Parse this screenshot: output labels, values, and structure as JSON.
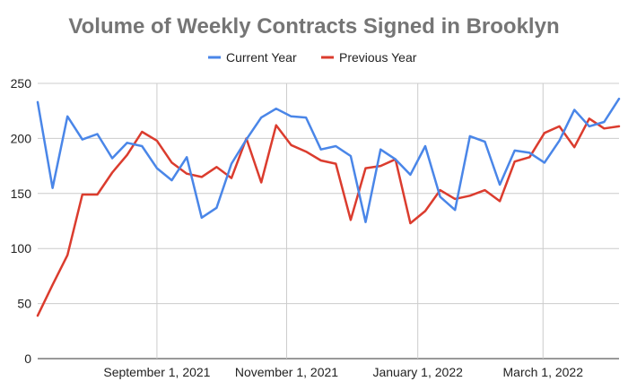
{
  "chart_data": {
    "type": "line",
    "title": "Volume of Weekly Contracts Signed in Brooklyn",
    "xlabel": "",
    "ylabel": "",
    "ylim": [
      0,
      250
    ],
    "yticks": [
      0,
      50,
      100,
      150,
      200,
      250
    ],
    "x_tick_labels": [
      {
        "label": "September 1, 2021",
        "week_index": 8
      },
      {
        "label": "November 1, 2021",
        "week_index": 16.7
      },
      {
        "label": "January 1, 2022",
        "week_index": 25.5
      },
      {
        "label": "March 1, 2022",
        "week_index": 33.9
      }
    ],
    "x_week_count": 39,
    "grid": true,
    "legend_position": "top",
    "series": [
      {
        "name": "Current Year",
        "color": "#4a86e8",
        "values": [
          233,
          155,
          220,
          199,
          204,
          182,
          196,
          193,
          173,
          162,
          183,
          128,
          137,
          177,
          199,
          219,
          227,
          220,
          219,
          190,
          193,
          184,
          124,
          190,
          181,
          167,
          193,
          147,
          135,
          202,
          197,
          158,
          189,
          187,
          178,
          198,
          226,
          211,
          215,
          236
        ]
      },
      {
        "name": "Previous Year",
        "color": "#db3c2e",
        "values": [
          39,
          67,
          94,
          149,
          149,
          169,
          185,
          206,
          198,
          178,
          168,
          165,
          174,
          164,
          200,
          160,
          212,
          194,
          188,
          180,
          177,
          126,
          173,
          175,
          181,
          123,
          134,
          153,
          145,
          148,
          153,
          143,
          179,
          183,
          205,
          211,
          192,
          218,
          209,
          211
        ]
      }
    ]
  }
}
